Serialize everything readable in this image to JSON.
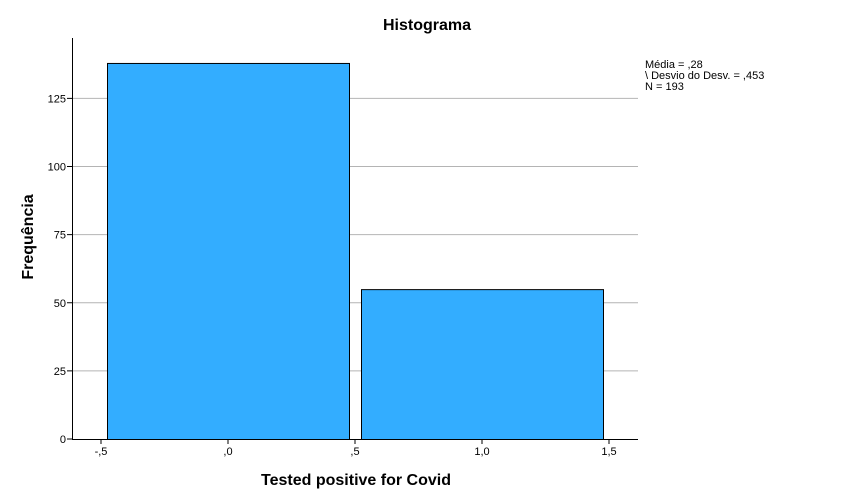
{
  "chart_data": {
    "type": "bar",
    "title": "Histograma",
    "xlabel": "Tested positive for Covid",
    "ylabel": "Frequência",
    "bins": [
      {
        "start": -0.5,
        "end": 0.5,
        "value": 138
      },
      {
        "start": 0.5,
        "end": 1.5,
        "value": 55
      }
    ],
    "xlim": [
      -0.5,
      1.5
    ],
    "ylim": [
      0,
      145
    ],
    "x_ticks": [
      {
        "value": -0.5,
        "label": "-,5"
      },
      {
        "value": 0.0,
        "label": ",0"
      },
      {
        "value": 0.5,
        "label": ",5"
      },
      {
        "value": 1.0,
        "label": "1,0"
      },
      {
        "value": 1.5,
        "label": "1,5"
      }
    ],
    "y_ticks": [
      {
        "value": 0,
        "label": "0"
      },
      {
        "value": 25,
        "label": "25"
      },
      {
        "value": 50,
        "label": "50"
      },
      {
        "value": 75,
        "label": "75"
      },
      {
        "value": 100,
        "label": "100"
      },
      {
        "value": 125,
        "label": "125"
      }
    ],
    "grid": true,
    "bar_color": "#33adff",
    "stats": {
      "mean": "Média = ,28",
      "std": "\\ Desvio do Desv. = ,453",
      "n": "N = 193"
    }
  }
}
